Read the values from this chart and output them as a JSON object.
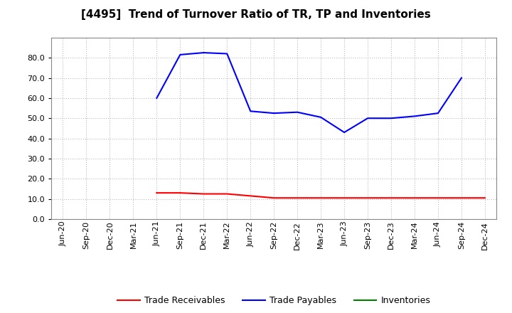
{
  "title": "[4495]  Trend of Turnover Ratio of TR, TP and Inventories",
  "x_labels": [
    "Jun-20",
    "Sep-20",
    "Dec-20",
    "Mar-21",
    "Jun-21",
    "Sep-21",
    "Dec-21",
    "Mar-22",
    "Jun-22",
    "Sep-22",
    "Dec-22",
    "Mar-23",
    "Jun-23",
    "Sep-23",
    "Dec-23",
    "Mar-24",
    "Jun-24",
    "Sep-24",
    "Dec-24"
  ],
  "trade_receivables": [
    null,
    null,
    null,
    null,
    13.0,
    13.0,
    12.5,
    12.5,
    11.5,
    10.5,
    10.5,
    10.5,
    10.5,
    10.5,
    10.5,
    10.5,
    10.5,
    10.5,
    10.5
  ],
  "trade_payables": [
    null,
    null,
    null,
    null,
    60.0,
    81.5,
    82.5,
    82.0,
    53.5,
    52.5,
    53.0,
    50.5,
    43.0,
    50.0,
    50.0,
    51.0,
    52.5,
    70.0,
    null
  ],
  "inventories": [
    null,
    null,
    null,
    null,
    null,
    null,
    null,
    null,
    null,
    null,
    null,
    null,
    null,
    null,
    null,
    null,
    null,
    null,
    null
  ],
  "ylim": [
    0.0,
    90.0
  ],
  "yticks": [
    0.0,
    10.0,
    20.0,
    30.0,
    40.0,
    50.0,
    60.0,
    70.0,
    80.0
  ],
  "tr_color": "#ff0000",
  "tp_color": "#0000ff",
  "inv_color": "#008000",
  "legend_labels": [
    "Trade Receivables",
    "Trade Payables",
    "Inventories"
  ],
  "background_color": "#ffffff",
  "grid_color": "#cccccc",
  "title_fontsize": 11,
  "tick_fontsize": 8,
  "legend_fontsize": 9,
  "linewidth": 1.5
}
